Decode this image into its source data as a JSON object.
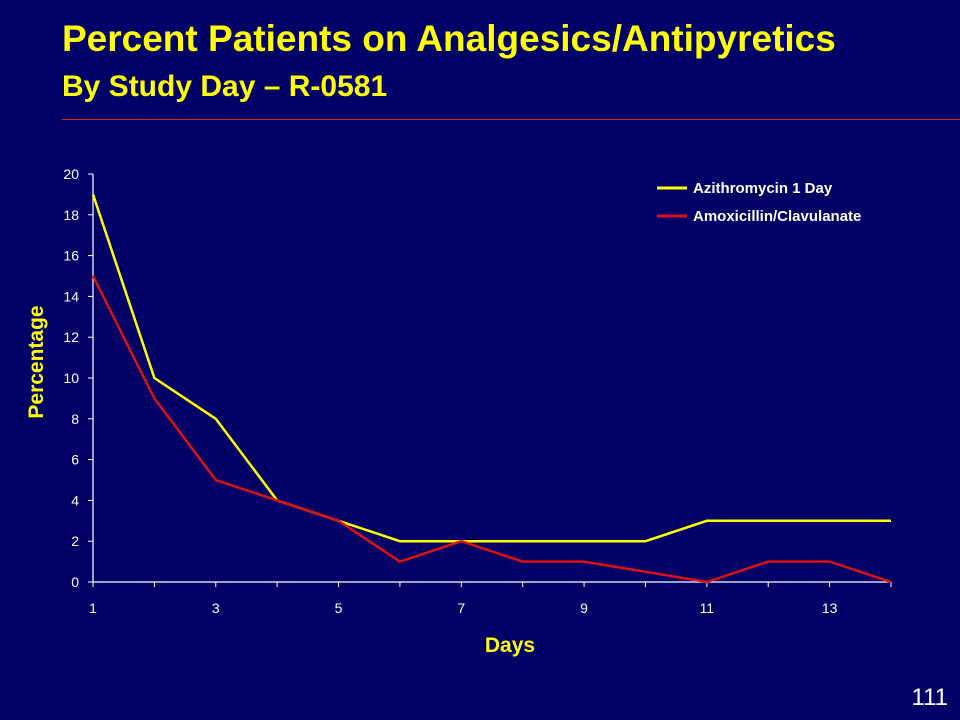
{
  "slide": {
    "title": "Percent Patients on Analgesics/Antipyretics",
    "subtitle": "By Study Day – R-0581",
    "page_number": "111"
  },
  "colors": {
    "background": "#000066",
    "title": "#ffff00",
    "rule": "#cc2a2a",
    "azithromycin": "#ffff00",
    "amoxicillin": "#dd1111",
    "axis": "#ffffff"
  },
  "chart_data": {
    "type": "line",
    "title": "",
    "xlabel": "Days",
    "ylabel": "Percentage",
    "x": [
      1,
      2,
      3,
      4,
      5,
      6,
      7,
      8,
      9,
      10,
      11,
      12,
      13,
      14
    ],
    "xlim": [
      1,
      14
    ],
    "ylim": [
      0,
      20
    ],
    "x_ticks": [
      1,
      3,
      5,
      7,
      9,
      11,
      13
    ],
    "y_ticks": [
      0,
      2,
      4,
      6,
      8,
      10,
      12,
      14,
      16,
      18,
      20
    ],
    "grid": false,
    "legend_position": "top-right",
    "series": [
      {
        "name": "Azithromycin 1 Day",
        "color": "#ffff00",
        "values": [
          19,
          10,
          8,
          4,
          3,
          2,
          2,
          2,
          2,
          2,
          3,
          3,
          3,
          3
        ]
      },
      {
        "name": "Amoxicillin/Clavulanate",
        "color": "#dd1111",
        "values": [
          15,
          9,
          5,
          4,
          3,
          1,
          2,
          1,
          1,
          0.5,
          0,
          1,
          1,
          0
        ]
      }
    ]
  }
}
